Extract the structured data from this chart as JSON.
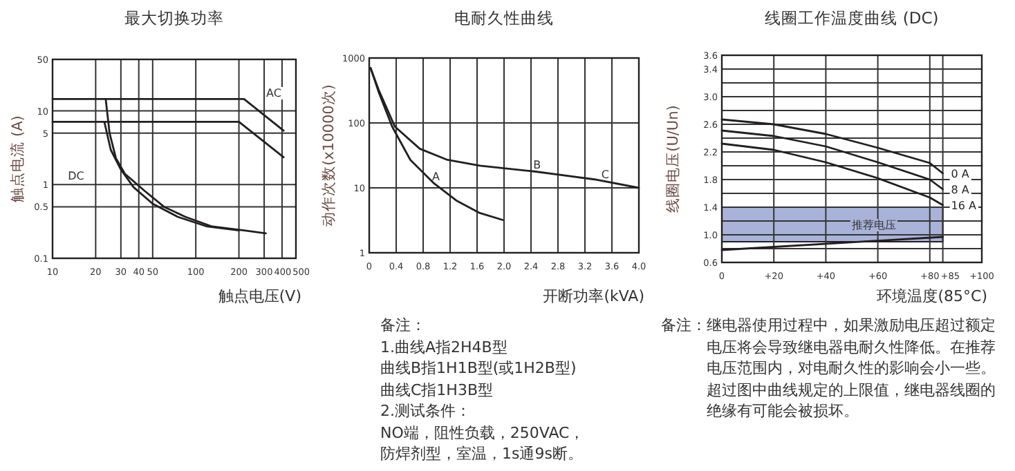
{
  "chart_data": [
    {
      "type": "line",
      "title": "最大切换功率",
      "xlabel": "触点电压(V)",
      "ylabel": "触点电流 (A)",
      "log": "xy",
      "grid": true,
      "marker": "none",
      "line_style": "solid",
      "xlim": [
        10,
        500
      ],
      "xticks": [
        10,
        20,
        30,
        40,
        50,
        100,
        200,
        300,
        400,
        500
      ],
      "ylim": [
        0.1,
        50
      ],
      "yticks": [
        0.1,
        0.5,
        1,
        5,
        10,
        50
      ],
      "series": [
        {
          "color": "#231f20",
          "x": [
            23.5,
            25,
            27.7,
            32,
            44,
            60,
            84.5,
            130,
            217,
            308
          ],
          "values": [
            14.5,
            5,
            2.28,
            1.4,
            0.82,
            0.5,
            0.365,
            0.27,
            0.239,
            0.218
          ]
        },
        {
          "color": "#231f20",
          "x": [
            23,
            25.5,
            30,
            36.8,
            50,
            74.8,
            120,
            200
          ],
          "values": [
            7.1,
            2.96,
            1.6,
            0.92,
            0.55,
            0.365,
            0.27,
            0.239
          ]
        },
        {
          "color": "#231f20",
          "x": [
            10,
            217,
            410
          ],
          "values": [
            14.5,
            14.5,
            5.4
          ]
        },
        {
          "color": "#231f20",
          "x": [
            10,
            200,
            410
          ],
          "values": [
            7.1,
            7.1,
            2.35
          ]
        }
      ],
      "annotations": [
        "DC",
        "AC"
      ]
    },
    {
      "type": "line",
      "title": "电耐久性曲线",
      "xlabel": "开断功率(kVA)",
      "ylabel": "动作次数(x10000次)",
      "log": "y",
      "grid": true,
      "marker": "none",
      "line_style": "solid",
      "xlim": [
        0,
        4
      ],
      "xticks": [
        0,
        0.4,
        0.8,
        1.2,
        1.6,
        {
          "value": 2,
          "label": "2.0"
        },
        2.4,
        2.8,
        3.2,
        3.6,
        {
          "value": 4,
          "label": "4.0"
        }
      ],
      "ylim": [
        1,
        1000
      ],
      "yticks": [
        1,
        10,
        100,
        1000
      ],
      "series": [
        {
          "color": "#231f20",
          "x": [
            0.02,
            0.14,
            0.34,
            0.61,
            0.95,
            1.29,
            1.64,
            1.98
          ],
          "values": [
            700,
            300,
            88,
            27,
            12,
            6.4,
            4.1,
            3.2
          ]
        },
        {
          "color": "#231f20",
          "x": [
            0.02,
            0.14,
            0.38,
            0.75,
            1.16,
            1.64,
            2.45,
            3.34,
            4.0
          ],
          "values": [
            700,
            324,
            88,
            40,
            27,
            22,
            17.9,
            13.5,
            10
          ]
        }
      ],
      "annotations": [
        {
          "text": "A",
          "x": 0.99,
          "y": 13
        },
        {
          "text": "B",
          "x": 2.49,
          "y": 20
        },
        {
          "text": "C",
          "x": 3.5,
          "y": 14
        },
        "备注：",
        "1.曲线A指2H4B型",
        "曲线B指1H1B型(或1H2B型)",
        "曲线C指1H3B型",
        "2.测试条件：",
        "NO端，阻性负载，250VAC，",
        "防焊剂型，室温，1s通9s断。"
      ]
    },
    {
      "type": "line",
      "title": "线圈工作温度曲线 (DC)",
      "xlabel": "环境温度(85°C)",
      "ylabel": "线圈电压(U/Un)",
      "grid": true,
      "marker": "none",
      "line_style": "solid",
      "xlim": [
        0,
        100
      ],
      "xticks": [
        0,
        {
          "value": 20,
          "label": "+20"
        },
        {
          "value": 40,
          "label": "+40"
        },
        {
          "value": 60,
          "label": "+60"
        },
        {
          "value": 80,
          "label": "+80"
        },
        {
          "value": 85,
          "label": "+85"
        },
        {
          "value": 100,
          "label": "+100"
        }
      ],
      "ylim": [
        0.6,
        3.6
      ],
      "yticks": [
        0.6,
        {
          "value": 0.8,
          "label": null
        },
        {
          "value": 1,
          "label": "1.0"
        },
        {
          "value": 1.2,
          "label": null
        },
        1.4,
        {
          "value": 1.6,
          "label": null
        },
        1.8,
        {
          "value": 2,
          "label": null
        },
        2.2,
        {
          "value": 2.4,
          "label": null
        },
        2.6,
        {
          "value": 2.8,
          "label": null
        },
        {
          "value": 3,
          "label": "3.0"
        },
        {
          "value": 3.2,
          "label": null
        },
        3.4,
        3.6
      ],
      "series": [
        {
          "name": "0 A",
          "color": "#231f20",
          "x": [
            0,
            20,
            40,
            60,
            80,
            85
          ],
          "values": [
            2.67,
            2.6,
            2.46,
            2.26,
            2.04,
            1.89
          ]
        },
        {
          "name": "8 A",
          "color": "#231f20",
          "x": [
            0,
            20,
            40,
            60,
            80,
            85
          ],
          "values": [
            2.51,
            2.43,
            2.28,
            2.05,
            1.8,
            1.66
          ]
        },
        {
          "name": "16 A",
          "color": "#231f20",
          "x": [
            0,
            20,
            40,
            60,
            80,
            85
          ],
          "values": [
            2.32,
            2.23,
            2.05,
            1.82,
            1.54,
            1.43
          ]
        },
        {
          "color": "#231f20",
          "x": [
            0,
            85
          ],
          "values": [
            0.78,
            0.97
          ]
        }
      ],
      "bands": [
        {
          "axis": "y",
          "from": 0.9,
          "to": 1.4,
          "label": "推荐电压",
          "color": "#a9b3d9"
        }
      ],
      "annotations": [
        "备注：继电器使用过程中，如果激励电压超过额定电压将会导致继电器电耐久性降低。在推荐电压范围内，对电耐久性的影响会小一些。超过图中曲线规定的上限值，继电器线圈的绝缘有可能会被损坏。"
      ]
    }
  ]
}
